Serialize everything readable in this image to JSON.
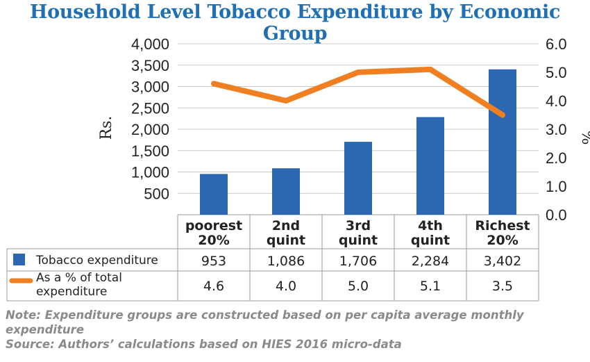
{
  "chart_data": {
    "type": "bar",
    "title": "Household Level Tobacco Expenditure by Economic Group",
    "categories": [
      [
        "poorest",
        "20%"
      ],
      [
        "2nd",
        "quint"
      ],
      [
        "3rd",
        "quint"
      ],
      [
        "4th",
        "quint"
      ],
      [
        "Richest",
        "20%"
      ]
    ],
    "series": [
      {
        "name": "Tobacco expenditure",
        "type": "bar",
        "axis": "left",
        "color": "#2e67b1",
        "values": [
          953,
          1086,
          1706,
          2284,
          3402
        ],
        "labels": [
          "953",
          "1,086",
          "1,706",
          "2,284",
          "3,402"
        ]
      },
      {
        "name": [
          "As a % of total",
          "expenditure"
        ],
        "type": "line",
        "axis": "right",
        "color": "#f07f22",
        "values": [
          4.6,
          4.0,
          5.0,
          5.1,
          3.5
        ],
        "labels": [
          "4.6",
          "4.0",
          "5.0",
          "5.1",
          "3.5"
        ]
      }
    ],
    "ylabel": "Rs.",
    "y2label": "%",
    "ylim": [
      0,
      4000
    ],
    "y2lim": [
      0,
      6
    ],
    "yticks": [
      500,
      1000,
      1500,
      2000,
      2500,
      3000,
      3500,
      4000
    ],
    "ytick_labels": [
      "500",
      "1,000",
      "1,500",
      "2,000",
      "2,500",
      "3,000",
      "3,500",
      "4,000"
    ],
    "y2ticks": [
      0,
      1,
      2,
      3,
      4,
      5,
      6
    ],
    "y2tick_labels": [
      "0.0",
      "1.0",
      "2.0",
      "3.0",
      "4.0",
      "5.0",
      "6.0"
    ],
    "grid": true,
    "legend": "data-table"
  },
  "notes": {
    "note": "Note: Expenditure groups are constructed based on per capita average monthly expenditure",
    "source": "Source: Authors’ calculations based on HIES 2016 micro-data"
  }
}
